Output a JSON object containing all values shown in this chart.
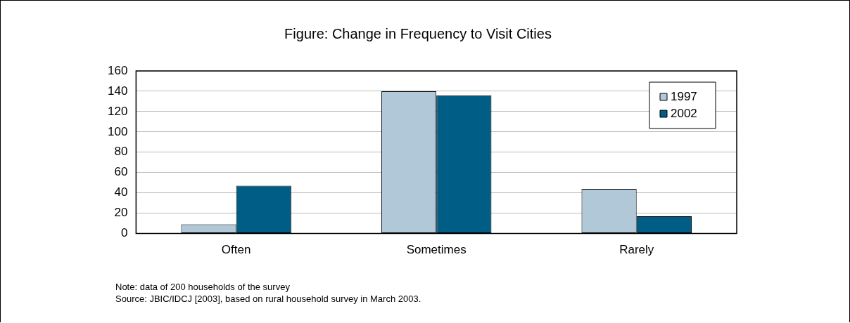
{
  "chart_data": {
    "type": "bar",
    "title": "Figure: Change in Frequency to Visit Cities",
    "categories": [
      "Often",
      "Sometimes",
      "Rarely"
    ],
    "series": [
      {
        "name": "1997",
        "color": "#b0c8d8",
        "values": [
          9,
          140,
          44
        ]
      },
      {
        "name": "2002",
        "color": "#005d85",
        "values": [
          47,
          136,
          17
        ]
      }
    ],
    "ylim": [
      0,
      160
    ],
    "yticks": [
      0,
      20,
      40,
      60,
      80,
      100,
      120,
      140,
      160
    ],
    "grid": "y",
    "legend": "top right",
    "annotations": [
      "Note: data of 200 households of the survey",
      "Source: JBIC/IDCJ [2003], based on rural household survey in March 2003."
    ]
  }
}
